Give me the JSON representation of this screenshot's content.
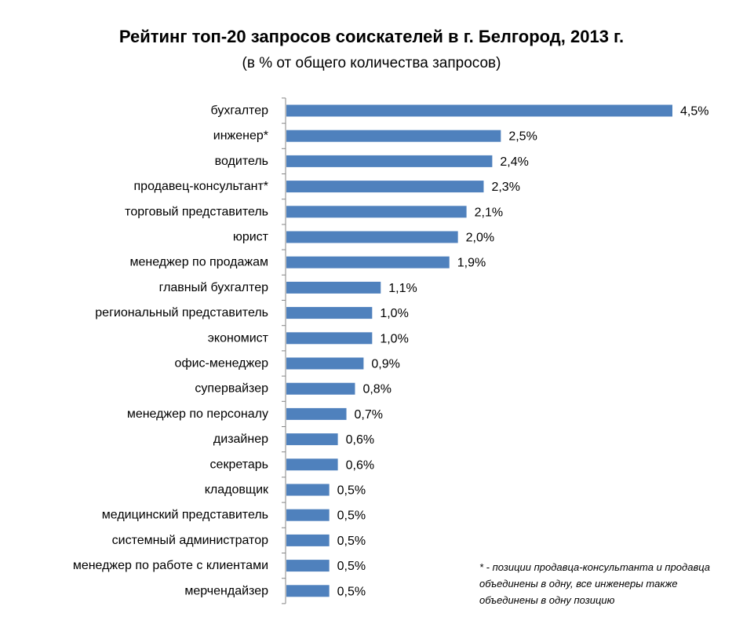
{
  "chart_data": {
    "type": "bar",
    "orientation": "horizontal",
    "title": "Рейтинг топ-20 запросов соискателей в г. Белгород, 2013 г.",
    "subtitle": "(в % от общего количества запросов)",
    "categories": [
      "бухгалтер",
      "инженер*",
      "водитель",
      "продавец-консультант*",
      "торговый представитель",
      "юрист",
      "менеджер по продажам",
      "главный бухгалтер",
      "региональный представитель",
      "экономист",
      "офис-менеджер",
      "супервайзер",
      "менеджер по персоналу",
      "дизайнер",
      "секретарь",
      "кладовщик",
      "медицинский представитель",
      "системный администратор",
      "менеджер по работе с клиентами",
      "мерчендайзер"
    ],
    "values": [
      4.5,
      2.5,
      2.4,
      2.3,
      2.1,
      2.0,
      1.9,
      1.1,
      1.0,
      1.0,
      0.9,
      0.8,
      0.7,
      0.6,
      0.6,
      0.5,
      0.5,
      0.5,
      0.5,
      0.5
    ],
    "labels": [
      "4,5%",
      "2,5%",
      "2,4%",
      "2,3%",
      "2,1%",
      "2,0%",
      "1,9%",
      "1,1%",
      "1,0%",
      "1,0%",
      "0,9%",
      "0,8%",
      "0,7%",
      "0,6%",
      "0,6%",
      "0,5%",
      "0,5%",
      "0,5%",
      "0,5%",
      "0,5%"
    ],
    "bar_color": "#4f81bd",
    "axis_color": "#868686",
    "grid": false,
    "legend": "none"
  },
  "footnote": "* - позиции продавца-консультанта и продавца объединены в одну, все инженеры также объединены в одну позицию"
}
